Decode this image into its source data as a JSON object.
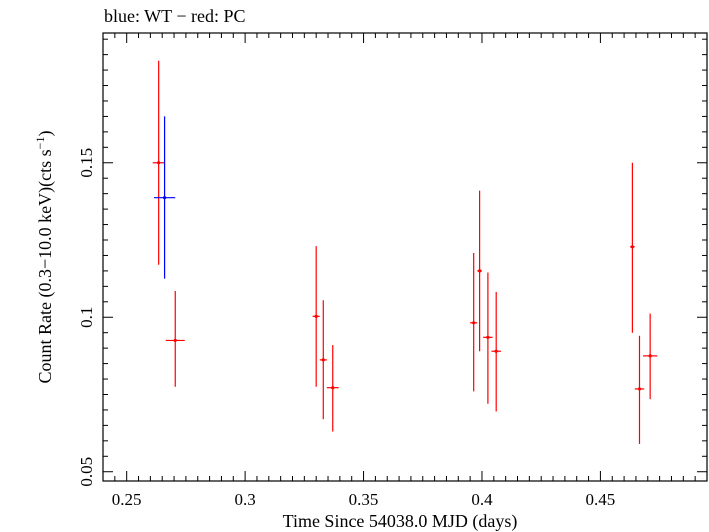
{
  "chart_data": {
    "type": "scatter",
    "title": "blue: WT − red: PC",
    "xlabel": "Time Since 54038.0 MJD (days)",
    "ylabel_main": "Count Rate (0.3−10.0 keV)(cts s",
    "ylabel_exp": "−1",
    "ylabel_close": ")",
    "xlim": [
      0.24,
      0.495
    ],
    "ylim": [
      0.047,
      0.192
    ],
    "xticks": [
      0.25,
      0.3,
      0.35,
      0.4,
      0.45
    ],
    "xtick_labels": [
      "0.25",
      "0.3",
      "0.35",
      "0.4",
      "0.45"
    ],
    "yticks": [
      0.05,
      0.1,
      0.15
    ],
    "ytick_labels": [
      "0.05",
      "0.1",
      "0.15"
    ],
    "grid": false,
    "series": [
      {
        "color": "#ff0000",
        "points": [
          {
            "x": 0.2635,
            "xerr": 0.0025,
            "y": 0.15,
            "ylo": 0.117,
            "yhi": 0.183
          },
          {
            "x": 0.2705,
            "xerr": 0.004,
            "y": 0.0925,
            "ylo": 0.0775,
            "yhi": 0.1085
          },
          {
            "x": 0.33,
            "xerr": 0.0015,
            "y": 0.1003,
            "ylo": 0.0775,
            "yhi": 0.123
          },
          {
            "x": 0.333,
            "xerr": 0.0015,
            "y": 0.0862,
            "ylo": 0.067,
            "yhi": 0.1055
          },
          {
            "x": 0.337,
            "xerr": 0.0025,
            "y": 0.0772,
            "ylo": 0.063,
            "yhi": 0.091
          },
          {
            "x": 0.3965,
            "xerr": 0.0015,
            "y": 0.0982,
            "ylo": 0.076,
            "yhi": 0.1208
          },
          {
            "x": 0.399,
            "xerr": 0.001,
            "y": 0.115,
            "ylo": 0.089,
            "yhi": 0.141
          },
          {
            "x": 0.4025,
            "xerr": 0.002,
            "y": 0.0935,
            "ylo": 0.072,
            "yhi": 0.1145
          },
          {
            "x": 0.406,
            "xerr": 0.002,
            "y": 0.089,
            "ylo": 0.0695,
            "yhi": 0.1082
          },
          {
            "x": 0.4635,
            "xerr": 0.001,
            "y": 0.1228,
            "ylo": 0.095,
            "yhi": 0.15
          },
          {
            "x": 0.4665,
            "xerr": 0.002,
            "y": 0.0768,
            "ylo": 0.059,
            "yhi": 0.094
          },
          {
            "x": 0.471,
            "xerr": 0.003,
            "y": 0.0875,
            "ylo": 0.0735,
            "yhi": 0.1012
          }
        ]
      },
      {
        "color": "#0000ff",
        "points": [
          {
            "x": 0.266,
            "xerr": 0.0045,
            "y": 0.1387,
            "ylo": 0.1125,
            "yhi": 0.165
          }
        ]
      }
    ]
  }
}
